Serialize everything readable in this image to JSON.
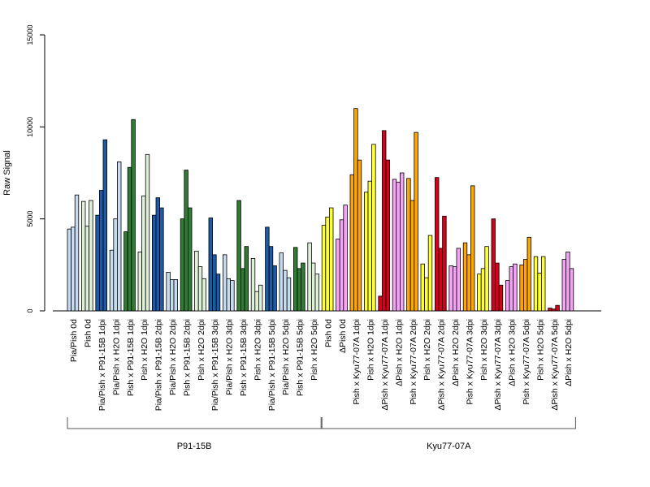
{
  "chart_data": {
    "type": "bar",
    "xlabel": "",
    "ylabel": "Raw Signal",
    "ylim": [
      0,
      15000
    ],
    "yticks": [
      0,
      5000,
      10000,
      15000
    ],
    "grid": false,
    "legend": "none",
    "categories": [
      "Pia/Pish 0d",
      "Pish 0d",
      "Pia/Pish x P91-15B 1dpi",
      "Pia/Pish x H2O 1dpi",
      "Pish x P91-15B 1dpi",
      "Pish x H2O 1dpi",
      "Pia/Pish x P91-15B 2dpi",
      "Pia/Pish x H2O 2dpi",
      "Pish x P91-15B 2dpi",
      "Pish x H2O 2dpi",
      "Pia/Pish x P91-15B 3dpi",
      "Pia/Pish x H2O 3dpi",
      "Pish x P91-15B 3dpi",
      "Pish x H2O 3dpi",
      "Pia/Pish x P91-15B 5dpi",
      "Pia/Pish x H2O 5dpi",
      "Pish x P91-15B 5dpi",
      "Pish x H2O 5dpi",
      "Pish 0d",
      "ΔPish 0d",
      "Pish x Kyu77-07A 1dpi",
      "Pish x H2O 1dpi",
      "ΔPish x Kyu77-07A 1dpi",
      "ΔPish x H2O 1dpi",
      "Pish x Kyu77-07A 2dpi",
      "Pish x H2O 2dpi",
      "ΔPish x Kyu77-07A 2dpi",
      "ΔPish x H2O 2dpi",
      "Pish x Kyu77-07A 3dpi",
      "Pish x H2O 3dpi",
      "ΔPish x Kyu77-07A 3dpi",
      "ΔPish x H2O 3dpi",
      "Pish x Kyu77-07A 5dpi",
      "Pish x H2O 5dpi",
      "ΔPish x Kyu77-07A 5dpi",
      "ΔPish x H2O 5dpi"
    ],
    "colors": {
      "light_blue": "#c6dbef",
      "dark_blue": "#1f5aa6",
      "light_green": "#dff0d8",
      "dark_green": "#2e7d32",
      "yellow": "#ffff33",
      "pink": "#f5a3f5",
      "orange": "#ffa500",
      "red": "#d7001a"
    },
    "groups": [
      {
        "label": "P91-15B",
        "first": 0,
        "last": 17
      },
      {
        "label": "Kyu77-07A",
        "first": 18,
        "last": 35
      }
    ],
    "bar_groups": [
      {
        "color": "light_blue",
        "values": [
          4450,
          4550,
          6300
        ]
      },
      {
        "color": "light_green",
        "values": [
          5950,
          4600,
          6000
        ]
      },
      {
        "color": "dark_blue",
        "values": [
          5200,
          6550,
          9300
        ]
      },
      {
        "color": "light_blue",
        "values": [
          3300,
          5000,
          8100
        ]
      },
      {
        "color": "dark_green",
        "values": [
          4300,
          7800,
          10400
        ]
      },
      {
        "color": "light_green",
        "values": [
          3200,
          6250,
          8500
        ]
      },
      {
        "color": "dark_blue",
        "values": [
          5200,
          6150,
          5600
        ]
      },
      {
        "color": "light_blue",
        "values": [
          2100,
          1700,
          1700
        ]
      },
      {
        "color": "dark_green",
        "values": [
          5000,
          7650,
          5600
        ]
      },
      {
        "color": "light_green",
        "values": [
          3250,
          2400,
          1750
        ]
      },
      {
        "color": "dark_blue",
        "values": [
          5050,
          3050,
          2000
        ]
      },
      {
        "color": "light_blue",
        "values": [
          3050,
          1750,
          1650
        ]
      },
      {
        "color": "dark_green",
        "values": [
          6000,
          2300,
          3500
        ]
      },
      {
        "color": "light_green",
        "values": [
          2850,
          1050,
          1400
        ]
      },
      {
        "color": "dark_blue",
        "values": [
          4550,
          3500,
          2450
        ]
      },
      {
        "color": "light_blue",
        "values": [
          3150,
          2200,
          1800
        ]
      },
      {
        "color": "dark_green",
        "values": [
          3450,
          2300,
          2600
        ]
      },
      {
        "color": "light_green",
        "values": [
          3700,
          2600,
          2000
        ]
      },
      {
        "color": "yellow",
        "values": [
          4650,
          5100,
          5600
        ]
      },
      {
        "color": "pink",
        "values": [
          3900,
          4950,
          5750
        ]
      },
      {
        "color": "orange",
        "values": [
          7400,
          11000,
          8200
        ]
      },
      {
        "color": "yellow",
        "values": [
          6450,
          7050,
          9050
        ]
      },
      {
        "color": "red",
        "values": [
          800,
          9800,
          8200
        ]
      },
      {
        "color": "pink",
        "values": [
          7150,
          7000,
          7500
        ]
      },
      {
        "color": "orange",
        "values": [
          7200,
          6000,
          9700
        ]
      },
      {
        "color": "yellow",
        "values": [
          2550,
          1800,
          4100
        ]
      },
      {
        "color": "red",
        "values": [
          7250,
          3400,
          5150
        ]
      },
      {
        "color": "pink",
        "values": [
          2450,
          2400,
          3400
        ]
      },
      {
        "color": "orange",
        "values": [
          3700,
          3050,
          6800
        ]
      },
      {
        "color": "yellow",
        "values": [
          2000,
          2300,
          3500
        ]
      },
      {
        "color": "red",
        "values": [
          5000,
          2600,
          1400
        ]
      },
      {
        "color": "pink",
        "values": [
          1650,
          2400,
          2550
        ]
      },
      {
        "color": "orange",
        "values": [
          2500,
          2800,
          4000
        ]
      },
      {
        "color": "yellow",
        "values": [
          2950,
          2050,
          2950
        ]
      },
      {
        "color": "red",
        "values": [
          150,
          100,
          300
        ]
      },
      {
        "color": "pink",
        "values": [
          2800,
          3200,
          2300
        ]
      }
    ]
  }
}
